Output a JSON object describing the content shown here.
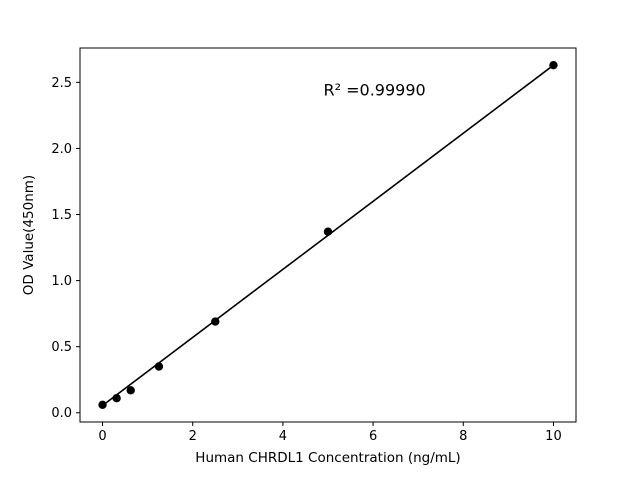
{
  "chart_data": {
    "type": "scatter",
    "title": "",
    "xlabel": "Human CHRDL1 Concentration (ng/mL)",
    "ylabel": "OD Value(450nm)",
    "annotation": {
      "text": "R² =0.99990",
      "x": 4.9,
      "y": 2.4
    },
    "x": [
      0,
      0.3125,
      0.625,
      1.25,
      2.5,
      5,
      10
    ],
    "y": [
      0.06,
      0.11,
      0.17,
      0.35,
      0.69,
      1.37,
      2.63
    ],
    "fit_line": {
      "x1": 0,
      "y1": 0.055,
      "x2": 10,
      "y2": 2.63
    },
    "xlim": [
      -0.5,
      10.5
    ],
    "ylim": [
      -0.07,
      2.76
    ],
    "xticks": [
      0,
      2,
      4,
      6,
      8,
      10
    ],
    "xtick_labels": [
      "0",
      "2",
      "4",
      "6",
      "8",
      "10"
    ],
    "yticks": [
      0.0,
      0.5,
      1.0,
      1.5,
      2.0,
      2.5
    ],
    "ytick_labels": [
      "0.0",
      "0.5",
      "1.0",
      "1.5",
      "2.0",
      "2.5"
    ],
    "grid": false,
    "legend": null,
    "colors": {
      "line": "#000000",
      "marker": "#000000",
      "text": "#000000",
      "background": "#ffffff",
      "spine": "#000000"
    }
  }
}
